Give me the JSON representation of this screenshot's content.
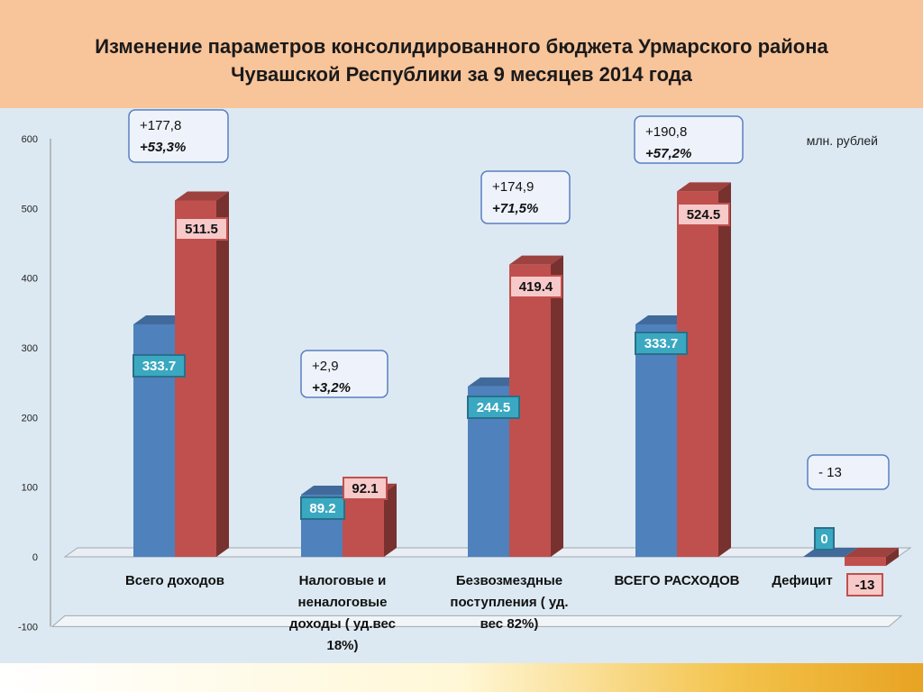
{
  "title": "Изменение параметров консолидированного бюджета  Урмарского района\nЧувашской Республики за 9 месяцев  2014 года",
  "chart_data": {
    "type": "bar",
    "title": "Изменение параметров консолидированного бюджета  Урмарского района Чувашской Республики за 9 месяцев  2014 года",
    "unit_label": "млн. рублей",
    "categories": [
      "Всего доходов",
      "Налоговые и неналоговые доходы ( уд.вес 18%)",
      "Безвозмездные поступления ( уд. вес 82%)",
      "ВСЕГО РАСХОДОВ",
      "Дефицит"
    ],
    "category_lines": [
      [
        "Всего доходов"
      ],
      [
        "Налоговые и",
        "неналоговые",
        "доходы ( уд.вес",
        "18%)"
      ],
      [
        "Безвозмездные",
        "поступления ( уд.",
        "вес 82%)"
      ],
      [
        "ВСЕГО РАСХОДОВ"
      ],
      [
        "Дефицит"
      ]
    ],
    "series": [
      {
        "values": [
          333.7,
          89.2,
          244.5,
          333.7,
          0
        ],
        "labels": [
          "333.7",
          "89.2",
          "244.5",
          "333.7",
          "0"
        ],
        "color": "#4f81bd"
      },
      {
        "values": [
          511.5,
          92.1,
          419.4,
          524.5,
          -13
        ],
        "labels": [
          "511.5",
          "92.1",
          "419.4",
          "524.5",
          "-13"
        ],
        "color": "#c0504d"
      }
    ],
    "ylim": [
      -100,
      600
    ],
    "yticks": [
      "-100",
      "0",
      "100",
      "200",
      "300",
      "400",
      "500",
      "600"
    ],
    "annotations": [
      {
        "line1": "+177,8",
        "line2": "+53,3%"
      },
      {
        "line1": "+2,9",
        "line2": "+3,2%"
      },
      {
        "line1": "+174,9",
        "line2": "+71,5%"
      },
      {
        "line1": "+190,8",
        "line2": "+57,2%"
      },
      {
        "line1": "- 13",
        "line2": ""
      }
    ],
    "grid": false,
    "style": "3d-clustered-column"
  }
}
